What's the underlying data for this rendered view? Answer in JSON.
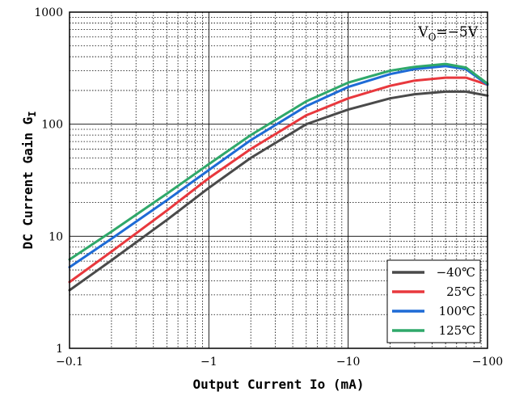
{
  "chart_data": {
    "type": "line",
    "title": "",
    "xlabel": "Output Current Io (mA)",
    "ylabel_main": "DC Current Gain G",
    "ylabel_sub": "I",
    "x_scale": "log",
    "y_scale": "log",
    "xlim": [
      -0.1,
      -100
    ],
    "ylim": [
      1,
      1000
    ],
    "grid": true,
    "legend_position": "bottom-right",
    "x_ticks": [
      {
        "value": -0.1,
        "label": "−0.1"
      },
      {
        "value": -1,
        "label": "−1"
      },
      {
        "value": -10,
        "label": "−10"
      },
      {
        "value": -100,
        "label": "−100"
      }
    ],
    "y_ticks": [
      {
        "value": 1,
        "label": "1"
      },
      {
        "value": 10,
        "label": "10"
      },
      {
        "value": 100,
        "label": "100"
      },
      {
        "value": 1000,
        "label": "1000"
      }
    ],
    "annotation": {
      "main": "V",
      "sub": "O",
      "rest": "=−5V"
    },
    "series": [
      {
        "name": "−40℃",
        "color": "#4a4a4a",
        "x": [
          -0.1,
          -0.2,
          -0.5,
          -1,
          -2,
          -5,
          -10,
          -20,
          -30,
          -50,
          -70,
          -100
        ],
        "y": [
          3.3,
          6.1,
          14,
          27,
          50,
          100,
          135,
          170,
          185,
          195,
          195,
          180
        ]
      },
      {
        "name": "25℃",
        "color": "#e8383d",
        "x": [
          -0.1,
          -0.2,
          -0.5,
          -1,
          -2,
          -5,
          -10,
          -20,
          -30,
          -50,
          -70,
          -100
        ],
        "y": [
          3.9,
          7.3,
          17,
          33,
          60,
          120,
          170,
          220,
          245,
          260,
          260,
          225
        ]
      },
      {
        "name": "100℃",
        "color": "#1e6bd6",
        "x": [
          -0.1,
          -0.2,
          -0.5,
          -1,
          -2,
          -5,
          -10,
          -20,
          -30,
          -50,
          -70,
          -100
        ],
        "y": [
          5.3,
          9.5,
          21,
          39,
          72,
          145,
          215,
          280,
          310,
          330,
          310,
          225
        ]
      },
      {
        "name": "125℃",
        "color": "#2fa86a",
        "x": [
          -0.1,
          -0.2,
          -0.5,
          -1,
          -2,
          -5,
          -10,
          -20,
          -30,
          -50,
          -70,
          -100
        ],
        "y": [
          6.2,
          11,
          24,
          44,
          80,
          160,
          235,
          300,
          325,
          345,
          320,
          230
        ]
      }
    ]
  }
}
